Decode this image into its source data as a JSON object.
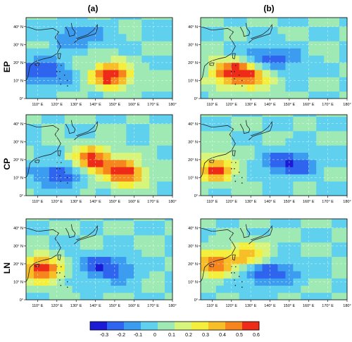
{
  "figure": {
    "column_labels": [
      "(a)",
      "(b)"
    ],
    "row_labels": [
      "EP",
      "CP",
      "LN"
    ],
    "lat_ticks": [
      "0°",
      "10° N",
      "20° N",
      "30° N",
      "40° N"
    ],
    "lon_ticks": [
      "110° E",
      "120° E",
      "130° E",
      "140° E",
      "150° E",
      "160° E",
      "170° E",
      "180°"
    ]
  },
  "colorbar": {
    "tick_labels": [
      "-0.3",
      "-0.2",
      "-0.1",
      "0",
      "0.1",
      "0.2",
      "0.3",
      "0.4",
      "0.5",
      "0.6"
    ],
    "colors": [
      "#1b1bd6",
      "#2e64ee",
      "#3c9cf0",
      "#5fd0ee",
      "#9ee9b4",
      "#d7f57a",
      "#f4ee3c",
      "#f8be28",
      "#f6851e",
      "#ee2a18"
    ]
  },
  "chart_data": [
    {
      "type": "heatmap",
      "panel": "(a)",
      "row": "EP",
      "xlim": [
        104,
        180
      ],
      "ylim": [
        0,
        45
      ],
      "features": [
        {
          "kind": "positive",
          "lon": 148,
          "lat": 13,
          "value": 0.6
        },
        {
          "kind": "negative",
          "lon": 112,
          "lat": 15,
          "value": -0.3
        },
        {
          "kind": "negative",
          "lon": 130,
          "lat": 35,
          "value": -0.2
        }
      ]
    },
    {
      "type": "heatmap",
      "panel": "(b)",
      "row": "EP",
      "xlim": [
        104,
        180
      ],
      "ylim": [
        0,
        45
      ],
      "features": [
        {
          "kind": "negative",
          "lon": 140,
          "lat": 22,
          "value": -0.3
        },
        {
          "kind": "positive",
          "lon": 118,
          "lat": 15,
          "value": 0.5
        },
        {
          "kind": "positive",
          "lon": 130,
          "lat": 13,
          "value": 0.5
        }
      ]
    },
    {
      "type": "heatmap",
      "panel": "(a)",
      "row": "CP",
      "xlim": [
        104,
        180
      ],
      "ylim": [
        0,
        45
      ],
      "features": [
        {
          "kind": "positive",
          "lon": 138,
          "lat": 20,
          "value": 0.6
        },
        {
          "kind": "positive",
          "lon": 155,
          "lat": 13,
          "value": 0.6
        },
        {
          "kind": "negative",
          "lon": 122,
          "lat": 12,
          "value": -0.3
        }
      ]
    },
    {
      "type": "heatmap",
      "panel": "(b)",
      "row": "CP",
      "xlim": [
        104,
        180
      ],
      "ylim": [
        0,
        45
      ],
      "features": [
        {
          "kind": "negative",
          "lon": 150,
          "lat": 18,
          "value": -0.3
        },
        {
          "kind": "positive",
          "lon": 112,
          "lat": 15,
          "value": 0.5
        }
      ]
    },
    {
      "type": "heatmap",
      "panel": "(a)",
      "row": "LN",
      "xlim": [
        104,
        180
      ],
      "ylim": [
        0,
        45
      ],
      "features": [
        {
          "kind": "negative",
          "lon": 145,
          "lat": 18,
          "value": -0.3
        },
        {
          "kind": "positive",
          "lon": 112,
          "lat": 17,
          "value": 0.6
        }
      ]
    },
    {
      "type": "heatmap",
      "panel": "(b)",
      "row": "LN",
      "xlim": [
        104,
        180
      ],
      "ylim": [
        0,
        45
      ],
      "features": [
        {
          "kind": "positive",
          "lon": 128,
          "lat": 25,
          "value": 0.4
        },
        {
          "kind": "positive",
          "lon": 110,
          "lat": 20,
          "value": 0.5
        },
        {
          "kind": "negative",
          "lon": 140,
          "lat": 15,
          "value": -0.3
        }
      ]
    }
  ]
}
